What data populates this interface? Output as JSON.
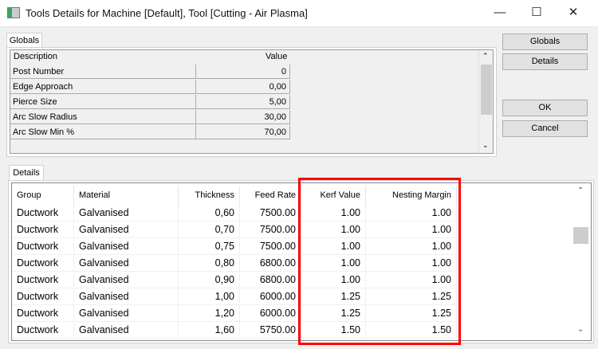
{
  "window": {
    "title": "Tools Details for Machine [Default], Tool [Cutting - Air Plasma]",
    "minimize": "—",
    "maximize": "☐",
    "close": "✕"
  },
  "globals": {
    "tab": "Globals",
    "headers": {
      "description": "Description",
      "value": "Value"
    },
    "rows": [
      {
        "description": "Post Number",
        "value": "0"
      },
      {
        "description": "Edge Approach",
        "value": "0,00"
      },
      {
        "description": "Pierce Size",
        "value": "5,00"
      },
      {
        "description": "Arc Slow Radius",
        "value": "30,00"
      },
      {
        "description": "Arc Slow Min %",
        "value": "70,00"
      }
    ]
  },
  "buttons": {
    "globals": "Globals",
    "details": "Details",
    "ok": "OK",
    "cancel": "Cancel"
  },
  "details": {
    "tab": "Details",
    "headers": [
      "Group",
      "Material",
      "Thickness",
      "Feed Rate",
      "Kerf Value",
      "Nesting Margin"
    ],
    "rows": [
      [
        "Ductwork",
        "Galvanised",
        "0,60",
        "7500.00",
        "1.00",
        "1.00"
      ],
      [
        "Ductwork",
        "Galvanised",
        "0,70",
        "7500.00",
        "1.00",
        "1.00"
      ],
      [
        "Ductwork",
        "Galvanised",
        "0,75",
        "7500.00",
        "1.00",
        "1.00"
      ],
      [
        "Ductwork",
        "Galvanised",
        "0,80",
        "6800.00",
        "1.00",
        "1.00"
      ],
      [
        "Ductwork",
        "Galvanised",
        "0,90",
        "6800.00",
        "1.00",
        "1.00"
      ],
      [
        "Ductwork",
        "Galvanised",
        "1,00",
        "6000.00",
        "1.25",
        "1.25"
      ],
      [
        "Ductwork",
        "Galvanised",
        "1,20",
        "6000.00",
        "1.25",
        "1.25"
      ],
      [
        "Ductwork",
        "Galvanised",
        "1,60",
        "5750.00",
        "1.50",
        "1.50"
      ]
    ]
  },
  "highlight_color": "#ff0000"
}
